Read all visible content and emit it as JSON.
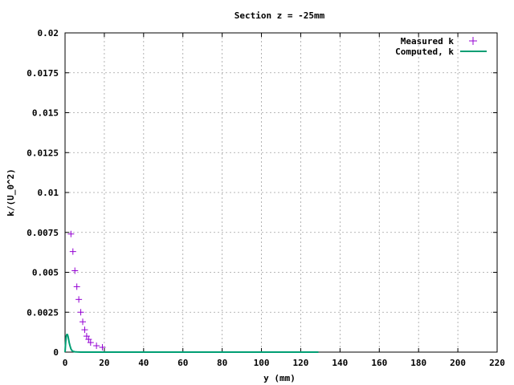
{
  "chart_data": {
    "type": "scatter",
    "title": "Section z = -25mm",
    "xlabel": "y (mm)",
    "ylabel": "k/(U_0^2)",
    "xlim": [
      0,
      220
    ],
    "ylim": [
      0,
      0.02
    ],
    "xticks": [
      "0",
      "20",
      "40",
      "60",
      "80",
      "100",
      "120",
      "140",
      "160",
      "180",
      "200",
      "220"
    ],
    "yticks": [
      "0",
      "0.0025",
      "0.005",
      "0.0075",
      "0.01",
      "0.0125",
      "0.015",
      "0.0175",
      "0.02"
    ],
    "grid": true,
    "legend_position": "top-right",
    "series": [
      {
        "name": "Measured k",
        "kind": "points",
        "marker": "plus",
        "color": "#9400d3",
        "x": [
          3,
          4,
          5,
          6,
          7,
          8,
          9,
          10,
          11,
          12,
          13,
          16,
          19
        ],
        "y": [
          0.0074,
          0.0063,
          0.0051,
          0.0041,
          0.0033,
          0.0025,
          0.0019,
          0.0014,
          0.001,
          0.0008,
          0.0006,
          0.0004,
          0.0003
        ]
      },
      {
        "name": "Computed, k",
        "kind": "line",
        "color": "#009e73",
        "x": [
          0,
          0.3,
          0.6,
          0.9,
          1.2,
          1.5,
          1.8,
          2.1,
          2.5,
          3,
          3.5,
          4,
          5,
          6,
          8,
          10,
          20,
          40,
          60,
          80,
          100,
          120,
          129
        ],
        "y": [
          0.0,
          0.0006,
          0.001,
          0.0011,
          0.0011,
          0.001,
          0.0008,
          0.0006,
          0.0004,
          0.0002,
          0.0001,
          5e-05,
          2e-05,
          1e-05,
          0.0,
          0.0,
          0.0,
          0.0,
          0.0,
          0.0,
          0.0,
          0.0,
          0.0
        ]
      }
    ]
  }
}
